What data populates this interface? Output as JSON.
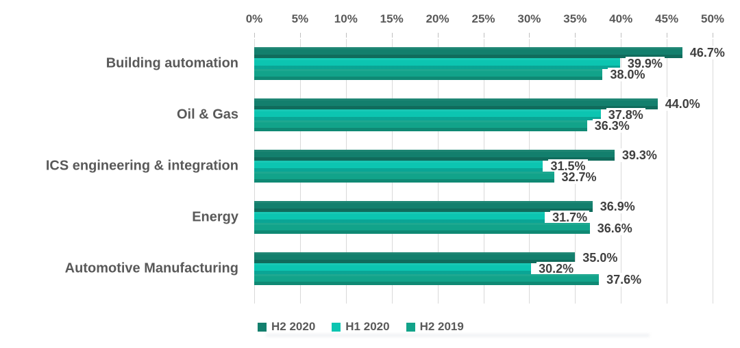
{
  "chart_data": {
    "type": "bar",
    "orientation": "horizontal",
    "title": "",
    "categories": [
      "Building automation",
      "Oil & Gas",
      "ICS engineering & integration",
      "Energy",
      "Automotive Manufacturing"
    ],
    "series": [
      {
        "name": "H2 2020",
        "color": "#137f6d",
        "values": [
          46.7,
          44.0,
          39.3,
          36.9,
          35.0
        ]
      },
      {
        "name": "H1 2020",
        "color": "#0cc5b1",
        "values": [
          39.9,
          37.8,
          31.5,
          31.7,
          30.2
        ]
      },
      {
        "name": "H2 2019",
        "color": "#12a38a",
        "values": [
          38.0,
          36.3,
          32.7,
          36.6,
          37.6
        ]
      }
    ],
    "value_label_suffix": "%",
    "value_label_decimals": 1,
    "axis": {
      "position": "top",
      "min": 0,
      "max": 50,
      "step": 5,
      "tick_labels": [
        "0%",
        "5%",
        "10%",
        "15%",
        "20%",
        "25%",
        "30%",
        "35%",
        "40%",
        "45%",
        "50%"
      ]
    },
    "grid": true,
    "legend": {
      "position": "bottom",
      "entries": [
        "H2 2020",
        "H1 2020",
        "H2 2019"
      ]
    },
    "colors": {
      "gridline": "#d9d9d9",
      "tick": "#bfbfbf",
      "axis_text": "#595959",
      "category_text": "#595959",
      "value_text": "#3f3f3f",
      "background": "#ffffff"
    }
  }
}
